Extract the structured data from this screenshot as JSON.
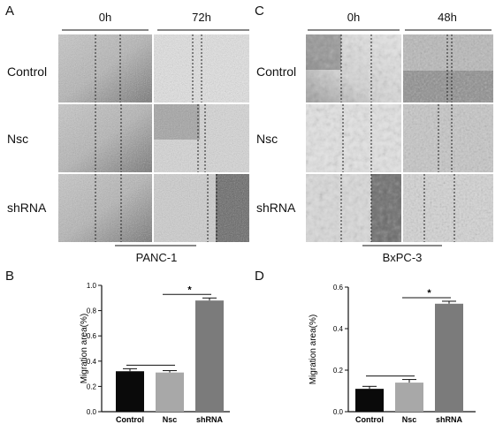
{
  "panels": {
    "A": {
      "letter": "A",
      "time_labels": [
        "0h",
        "72h"
      ],
      "rows": [
        "Control",
        "Nsc",
        "shRNA"
      ],
      "cell_line": "PANC-1"
    },
    "C": {
      "letter": "C",
      "time_labels": [
        "0h",
        "48h"
      ],
      "rows": [
        "Control",
        "Nsc",
        "shRNA"
      ],
      "cell_line": "BxPC-3"
    },
    "B": {
      "letter": "B"
    },
    "D": {
      "letter": "D"
    }
  },
  "chart_data": [
    {
      "id": "B",
      "type": "bar",
      "categories": [
        "Control",
        "Nsc",
        "shRNA"
      ],
      "values": [
        0.32,
        0.31,
        0.88
      ],
      "errors": [
        0.02,
        0.015,
        0.02
      ],
      "colors": [
        "#0a0a0a",
        "#a8a8a8",
        "#7b7b7b"
      ],
      "ylabel": "Migration area(%)",
      "ylim": [
        0,
        1.0
      ],
      "yticks": [
        0.0,
        0.2,
        0.4,
        0.6,
        0.8,
        1.0
      ],
      "ytick_labels": [
        "0.0",
        "0.2",
        "0.4",
        "0.6",
        "0.8",
        "1.0"
      ],
      "significance": "*"
    },
    {
      "id": "D",
      "type": "bar",
      "categories": [
        "Control",
        "Nsc",
        "shRNA"
      ],
      "values": [
        0.11,
        0.14,
        0.52
      ],
      "errors": [
        0.012,
        0.015,
        0.012
      ],
      "colors": [
        "#0a0a0a",
        "#a8a8a8",
        "#7b7b7b"
      ],
      "ylabel": "Migration area(%)",
      "ylim": [
        0,
        0.6
      ],
      "yticks": [
        0.0,
        0.2,
        0.4,
        0.6
      ],
      "ytick_labels": [
        "0.0",
        "0.2",
        "0.4",
        "0.6"
      ],
      "significance": "*"
    }
  ]
}
